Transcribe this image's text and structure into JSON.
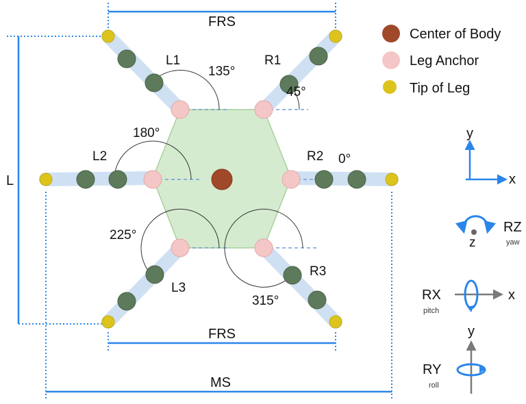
{
  "dimensions": {
    "frs_top": "FRS",
    "frs_bottom": "FRS",
    "ms": "MS",
    "length": "L"
  },
  "legs": {
    "l1": "L1",
    "l2": "L2",
    "l3": "L3",
    "r1": "R1",
    "r2": "R2",
    "r3": "R3"
  },
  "angles": {
    "l1": "135°",
    "l2": "180°",
    "l3": "225°",
    "r1": "45°",
    "r2": "0°",
    "r3": "315°"
  },
  "legend": [
    {
      "label": "Center of Body",
      "color": "#a0482a"
    },
    {
      "label": "Leg Anchor",
      "color": "#f4c6c6"
    },
    {
      "label": "Tip of Leg",
      "color": "#dcc41c"
    }
  ],
  "axes": {
    "planar": {
      "y": "y",
      "x": "x"
    },
    "rz": {
      "label": "RZ",
      "sub": "yaw",
      "axis": "z"
    },
    "rx": {
      "label": "RX",
      "sub": "pitch",
      "axis": "x"
    },
    "ry": {
      "label": "RY",
      "sub": "roll",
      "axis": "y"
    }
  },
  "colors": {
    "body_fill": "#d5ebcf",
    "leg_fill": "#cfe0f3",
    "joint": "#5d7a5a",
    "dimension_line": "#2a86e8",
    "axis_blue": "#2a86e8",
    "axis_gray": "#7a7a7a"
  }
}
